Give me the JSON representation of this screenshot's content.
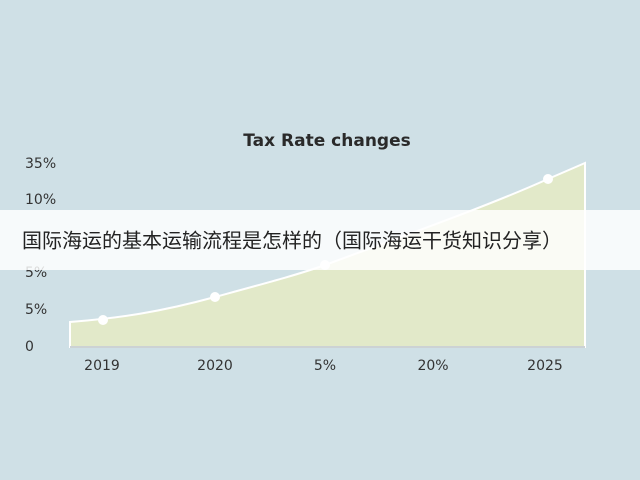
{
  "chart": {
    "title": "Tax Rate changes",
    "y_labels": [
      "35%",
      "10%",
      "5%",
      "5%",
      "0"
    ],
    "x_labels": [
      "2019",
      "2020",
      "5%",
      "20%",
      "2025"
    ]
  },
  "banner": {
    "text": "国际海运的基本运输流程是怎样的（国际海运干货知识分享）"
  }
}
